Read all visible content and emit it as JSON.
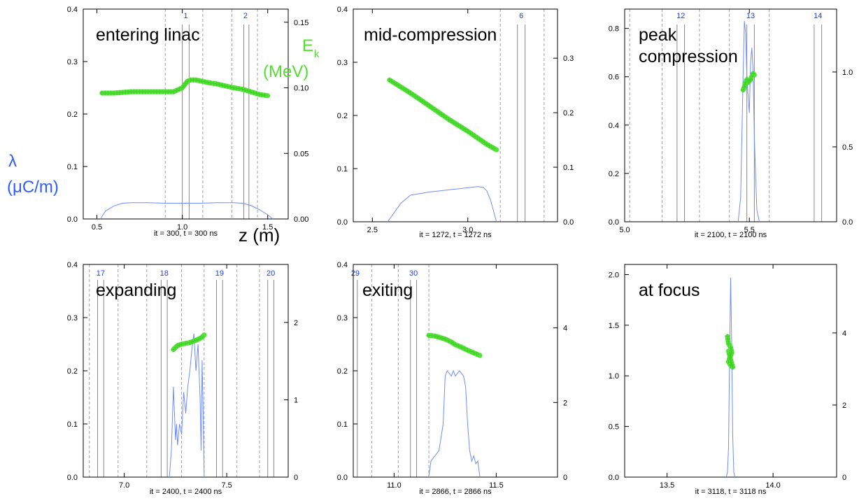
{
  "figure_labels": {
    "y_left_symbol": "λ",
    "y_left_unit": "(μC/m)",
    "y_right_symbol": "E",
    "y_right_subscript": "k",
    "y_right_unit": "(MeV)",
    "x_label": "z (m)"
  },
  "colors": {
    "line_density": "#6f8cff",
    "energy": "#55e33a",
    "gap_solid": "#888888",
    "gap_dashed": "#888888",
    "marker_number": "#1a3cff",
    "frame": "#000000"
  },
  "chart_data": [
    {
      "type": "line",
      "title": "entering linac",
      "caption": "it = 300,   t =  300 ns",
      "xlim": [
        0.42,
        1.62
      ],
      "ylim": [
        0,
        0.4
      ],
      "y2lim": [
        0,
        0.16
      ],
      "xticks": [
        0.5,
        1.0,
        1.5
      ],
      "xtick_labels": [
        "0.5",
        "1.0",
        "1.5"
      ],
      "yticks": [
        0.0,
        0.1,
        0.2,
        0.3,
        0.4
      ],
      "ytick_labels": [
        "0.0",
        "0.1",
        "0.2",
        "0.3",
        "0.4"
      ],
      "y2ticks": [
        0.0,
        0.05,
        0.1,
        0.15
      ],
      "y2tick_labels": [
        "0.00",
        "0.05",
        "0.10",
        "0.15"
      ],
      "gaps_solid": [
        1.0,
        1.04,
        1.36,
        1.39
      ],
      "gaps_dashed": [
        0.9,
        1.12,
        1.29,
        1.44
      ],
      "gap_markers": [
        {
          "x": 1.02,
          "label": "1"
        },
        {
          "x": 1.37,
          "label": "2"
        }
      ],
      "series": [
        {
          "axis": "left",
          "x": [
            0.52,
            0.55,
            0.6,
            0.65,
            0.7,
            0.8,
            0.9,
            1.0,
            1.1,
            1.2,
            1.25,
            1.3,
            1.35,
            1.4,
            1.45,
            1.5,
            1.53
          ],
          "values": [
            0.0,
            0.015,
            0.025,
            0.03,
            0.031,
            0.031,
            0.03,
            0.03,
            0.03,
            0.031,
            0.031,
            0.031,
            0.03,
            0.026,
            0.018,
            0.008,
            0.0
          ]
        },
        {
          "axis": "right",
          "x": [
            0.53,
            0.6,
            0.7,
            0.8,
            0.9,
            0.95,
            1.0,
            1.03,
            1.05,
            1.08,
            1.15,
            1.2,
            1.3,
            1.35,
            1.4,
            1.45,
            1.5
          ],
          "values": [
            0.096,
            0.096,
            0.097,
            0.097,
            0.097,
            0.097,
            0.1,
            0.105,
            0.106,
            0.106,
            0.104,
            0.103,
            0.1,
            0.099,
            0.097,
            0.095,
            0.094
          ]
        }
      ]
    },
    {
      "type": "line",
      "title": "mid-compression",
      "caption": "it = 1272,   t = 1272 ns",
      "xlim": [
        2.4,
        3.47
      ],
      "ylim": [
        0,
        0.4
      ],
      "y2lim": [
        0,
        0.39
      ],
      "xticks": [
        2.5,
        3.0
      ],
      "xtick_labels": [
        "2.5",
        "3.0"
      ],
      "yticks": [
        0.0,
        0.1,
        0.2,
        0.3,
        0.4
      ],
      "ytick_labels": [
        "0.0",
        "0.1",
        "0.2",
        "0.3",
        "0.4"
      ],
      "y2ticks": [
        0.0,
        0.1,
        0.2,
        0.3
      ],
      "y2tick_labels": [
        "0.0",
        "0.1",
        "0.2",
        "0.3"
      ],
      "gaps_solid": [
        3.26,
        3.3
      ],
      "gaps_dashed": [
        3.17,
        3.4
      ],
      "gap_markers": [
        {
          "x": 3.28,
          "label": "6"
        }
      ],
      "series": [
        {
          "axis": "left",
          "x": [
            2.58,
            2.62,
            2.65,
            2.7,
            2.8,
            2.9,
            3.0,
            3.05,
            3.08,
            3.1,
            3.12,
            3.15
          ],
          "values": [
            0.0,
            0.02,
            0.035,
            0.05,
            0.056,
            0.06,
            0.064,
            0.066,
            0.065,
            0.058,
            0.04,
            0.0
          ]
        },
        {
          "axis": "right",
          "x": [
            2.59,
            2.7,
            2.8,
            2.9,
            3.0,
            3.1,
            3.15
          ],
          "values": [
            0.26,
            0.236,
            0.212,
            0.188,
            0.166,
            0.142,
            0.132
          ]
        }
      ]
    },
    {
      "type": "line",
      "title": "peak compression",
      "caption": "it = 2100,   t = 2100 ns",
      "xlim": [
        5.0,
        5.85
      ],
      "ylim": [
        0,
        0.88
      ],
      "y2lim": [
        0,
        1.42
      ],
      "xticks": [
        5.0,
        5.5
      ],
      "xtick_labels": [
        "5.0",
        "5.5"
      ],
      "yticks": [
        0.0,
        0.2,
        0.4,
        0.6,
        0.8
      ],
      "ytick_labels": [
        "0.0",
        "0.2",
        "0.4",
        "0.6",
        "0.8"
      ],
      "y2ticks": [
        0.0,
        0.5,
        1.0
      ],
      "y2tick_labels": [
        "0.0",
        "0.5",
        "1.0"
      ],
      "gaps_solid": [
        5.21,
        5.24,
        5.49,
        5.52,
        5.76,
        5.79
      ],
      "gaps_dashed": [
        5.02,
        5.15,
        5.3,
        5.42,
        5.58,
        5.85
      ],
      "gap_markers": [
        {
          "x": 5.225,
          "label": "12"
        },
        {
          "x": 5.505,
          "label": "13"
        },
        {
          "x": 5.775,
          "label": "14"
        }
      ],
      "series": [
        {
          "axis": "left",
          "x": [
            5.455,
            5.465,
            5.475,
            5.48,
            5.485,
            5.49,
            5.5,
            5.505,
            5.51,
            5.515,
            5.52,
            5.53,
            5.54
          ],
          "values": [
            0.0,
            0.1,
            0.6,
            0.83,
            0.78,
            0.6,
            0.45,
            0.66,
            0.72,
            0.62,
            0.35,
            0.05,
            0.0
          ]
        },
        {
          "axis": "right",
          "x": [
            5.475,
            5.48,
            5.485,
            5.49,
            5.495,
            5.5,
            5.505,
            5.51,
            5.515,
            5.52
          ],
          "values": [
            0.88,
            0.9,
            0.93,
            0.95,
            0.93,
            0.94,
            0.95,
            0.97,
            0.99,
            0.98
          ]
        }
      ]
    },
    {
      "type": "line",
      "title": "expanding",
      "caption": "it = 2400,   t = 2400 ns",
      "xlim": [
        6.8,
        7.8
      ],
      "ylim": [
        0,
        0.4
      ],
      "y2lim": [
        0,
        2.75
      ],
      "xticks": [
        7.0,
        7.5
      ],
      "xtick_labels": [
        "7.0",
        "7.5"
      ],
      "yticks": [
        0.0,
        0.1,
        0.2,
        0.3,
        0.4
      ],
      "ytick_labels": [
        "0.0",
        "0.1",
        "0.2",
        "0.3",
        "0.4"
      ],
      "y2ticks": [
        0,
        1,
        2
      ],
      "y2tick_labels": [
        "0",
        "1",
        "2"
      ],
      "gaps_solid": [
        6.87,
        6.9,
        7.18,
        7.21,
        7.45,
        7.48,
        7.7,
        7.73
      ],
      "gaps_dashed": [
        6.83,
        6.97,
        7.11,
        7.28,
        7.39,
        7.55,
        7.66,
        7.8
      ],
      "gap_markers": [
        {
          "x": 6.885,
          "label": "17"
        },
        {
          "x": 7.195,
          "label": "18"
        },
        {
          "x": 7.465,
          "label": "19"
        },
        {
          "x": 7.715,
          "label": "20"
        }
      ],
      "series": [
        {
          "axis": "left",
          "x": [
            7.22,
            7.23,
            7.235,
            7.24,
            7.245,
            7.25,
            7.255,
            7.26,
            7.27,
            7.28,
            7.29,
            7.3,
            7.31,
            7.32,
            7.33,
            7.34,
            7.35,
            7.36,
            7.37,
            7.375,
            7.38,
            7.385,
            7.39
          ],
          "values": [
            0.0,
            0.05,
            0.11,
            0.17,
            0.12,
            0.07,
            0.1,
            0.06,
            0.1,
            0.08,
            0.16,
            0.12,
            0.17,
            0.2,
            0.24,
            0.27,
            0.2,
            0.25,
            0.15,
            0.05,
            0.22,
            0.12,
            0.0
          ]
        },
        {
          "axis": "right",
          "x": [
            7.24,
            7.26,
            7.28,
            7.3,
            7.32,
            7.34,
            7.36,
            7.38,
            7.39
          ],
          "values": [
            1.65,
            1.7,
            1.72,
            1.73,
            1.74,
            1.76,
            1.78,
            1.81,
            1.84
          ]
        }
      ]
    },
    {
      "type": "line",
      "title": "exiting",
      "caption": "it = 2866,   t = 2866 ns",
      "xlim": [
        10.8,
        11.8
      ],
      "ylim": [
        0,
        0.4
      ],
      "y2lim": [
        0,
        5.7
      ],
      "xticks": [
        11.0,
        11.5
      ],
      "xtick_labels": [
        "11.0",
        "11.5"
      ],
      "yticks": [
        0.0,
        0.1,
        0.2,
        0.3,
        0.4
      ],
      "ytick_labels": [
        "0.0",
        "0.1",
        "0.2",
        "0.3",
        "0.4"
      ],
      "y2ticks": [
        0,
        2,
        4
      ],
      "y2tick_labels": [
        "0",
        "2",
        "4"
      ],
      "gaps_solid": [
        10.82,
        11.08,
        11.11
      ],
      "gaps_dashed": [
        10.89,
        11.02,
        11.17
      ],
      "gap_markers": [
        {
          "x": 10.81,
          "label": "29"
        },
        {
          "x": 11.095,
          "label": "30"
        }
      ],
      "series": [
        {
          "axis": "left",
          "x": [
            11.17,
            11.18,
            11.2,
            11.22,
            11.24,
            11.25,
            11.26,
            11.28,
            11.29,
            11.3,
            11.32,
            11.34,
            11.35,
            11.36,
            11.37,
            11.38,
            11.39,
            11.4,
            11.41,
            11.42
          ],
          "values": [
            0.0,
            0.03,
            0.04,
            0.05,
            0.1,
            0.19,
            0.2,
            0.19,
            0.2,
            0.19,
            0.2,
            0.19,
            0.17,
            0.1,
            0.05,
            0.03,
            0.04,
            0.025,
            0.03,
            0.0
          ]
        },
        {
          "axis": "right",
          "x": [
            11.17,
            11.2,
            11.22,
            11.25,
            11.28,
            11.3,
            11.33,
            11.36,
            11.39,
            11.42
          ],
          "values": [
            3.8,
            3.78,
            3.75,
            3.7,
            3.62,
            3.55,
            3.48,
            3.4,
            3.33,
            3.26
          ]
        }
      ]
    },
    {
      "type": "line",
      "title": "at focus",
      "caption": "it = 3118,   t = 3118 ns",
      "xlim": [
        13.3,
        14.3
      ],
      "ylim": [
        0,
        2.1
      ],
      "y2lim": [
        0,
        5.9
      ],
      "xticks": [
        13.5,
        14.0
      ],
      "xtick_labels": [
        "13.5",
        "14.0"
      ],
      "yticks": [
        0.0,
        0.5,
        1.0,
        1.5,
        2.0
      ],
      "ytick_labels": [
        "0.0",
        "0.5",
        "1.0",
        "1.5",
        "2.0"
      ],
      "y2ticks": [
        0,
        2,
        4
      ],
      "y2tick_labels": [
        "0",
        "2",
        "4"
      ],
      "gaps_solid": [],
      "gaps_dashed": [],
      "gap_markers": [],
      "series": [
        {
          "axis": "left",
          "x": [
            13.78,
            13.785,
            13.79,
            13.795,
            13.8,
            13.805,
            13.81,
            13.815,
            13.82
          ],
          "values": [
            0.0,
            0.05,
            0.3,
            1.2,
            1.97,
            1.3,
            0.4,
            0.05,
            0.0
          ]
        },
        {
          "axis": "right",
          "x": [
            13.785,
            13.79,
            13.8,
            13.805,
            13.795,
            13.79,
            13.8,
            13.81,
            13.8,
            13.79
          ],
          "values": [
            3.9,
            3.7,
            3.6,
            3.45,
            3.3,
            3.2,
            3.1,
            3.05,
            3.25,
            3.5
          ]
        }
      ]
    }
  ]
}
